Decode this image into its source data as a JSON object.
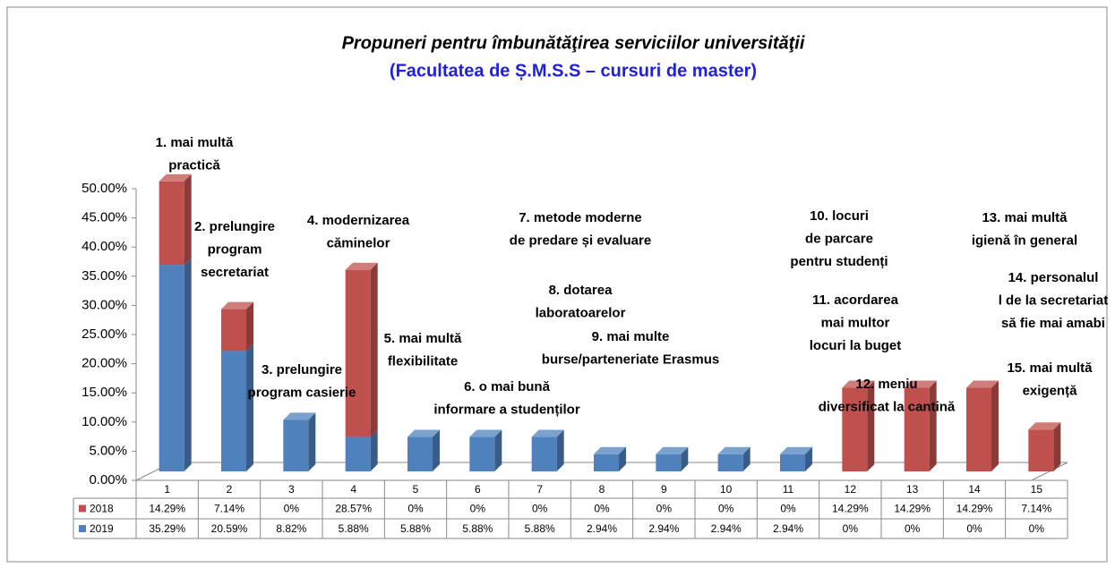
{
  "chart_data": {
    "type": "stacked_bar_3d",
    "title": "Propuneri pentru îmbunătăţirea  serviciilor universităţii",
    "subtitle": "(Facultatea de Ș.M.S.S – cursuri de master)",
    "categories": [
      "1",
      "2",
      "3",
      "4",
      "5",
      "6",
      "7",
      "8",
      "9",
      "10",
      "11",
      "12",
      "13",
      "14",
      "15"
    ],
    "series": [
      {
        "name": "2018",
        "color": "#c0504d",
        "values": [
          14.29,
          7.14,
          0,
          28.57,
          0,
          0,
          0,
          0,
          0,
          0,
          0,
          14.29,
          14.29,
          14.29,
          7.14
        ],
        "value_labels": [
          "14.29%",
          "7.14%",
          "0%",
          "28.57%",
          "0%",
          "0%",
          "0%",
          "0%",
          "0%",
          "0%",
          "0%",
          "14.29%",
          "14.29%",
          "14.29%",
          "7.14%"
        ]
      },
      {
        "name": "2019",
        "color": "#4f81bd",
        "values": [
          35.29,
          20.59,
          8.82,
          5.88,
          5.88,
          5.88,
          5.88,
          2.94,
          2.94,
          2.94,
          2.94,
          0,
          0,
          0,
          0
        ],
        "value_labels": [
          "35.29%",
          "20.59%",
          "8.82%",
          "5.88%",
          "5.88%",
          "5.88%",
          "5.88%",
          "2.94%",
          "2.94%",
          "2.94%",
          "2.94%",
          "0%",
          "0%",
          "0%",
          "0%"
        ]
      }
    ],
    "ylim": [
      0,
      50
    ],
    "yticks": [
      {
        "value": 0,
        "label": "0.00%"
      },
      {
        "value": 5,
        "label": "5.00%"
      },
      {
        "value": 10,
        "label": "10.00%"
      },
      {
        "value": 15,
        "label": "15.00%"
      },
      {
        "value": 20,
        "label": "20.00%"
      },
      {
        "value": 25,
        "label": "25.00%"
      },
      {
        "value": 30,
        "label": "30.00%"
      },
      {
        "value": 35,
        "label": "35.00%"
      },
      {
        "value": 40,
        "label": "40.00%"
      },
      {
        "value": 45,
        "label": "45.00%"
      },
      {
        "value": 50,
        "label": "50.00%"
      }
    ],
    "grid": false,
    "annotations": [
      [
        "1. mai multă",
        "practică"
      ],
      [
        "2. prelungire",
        "program",
        "secretariat"
      ],
      [
        "3. prelungire",
        "program casierie"
      ],
      [
        "4. modernizarea",
        "căminelor"
      ],
      [
        "5. mai multă",
        "flexibilitate"
      ],
      [
        "6. o mai bună",
        "informare a studenților"
      ],
      [
        "7. metode moderne",
        "de predare și evaluare"
      ],
      [
        "8. dotarea",
        "laboratoarelor"
      ],
      [
        "9. mai multe",
        "burse/parteneriate  Erasmus"
      ],
      [
        "10. locuri",
        "de parcare",
        "pentru studenți"
      ],
      [
        "11. acordarea",
        "mai multor",
        "locuri la buget"
      ],
      [
        "12. meniu",
        "diversificat la cantină"
      ],
      [
        "13. mai multă",
        "igienă în general"
      ],
      [
        "14. personalul",
        "l de la secretariat",
        "să fie mai amabi"
      ],
      [
        "15. mai multă",
        "exigență"
      ]
    ]
  }
}
